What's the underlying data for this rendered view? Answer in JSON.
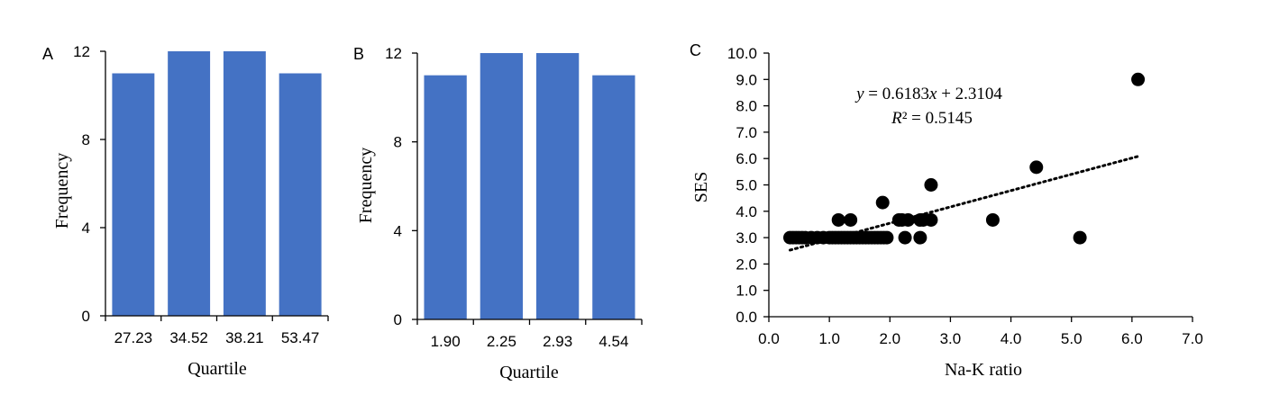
{
  "chart_data": [
    {
      "panel": "A",
      "type": "bar",
      "categories": [
        "27.23",
        "34.52",
        "38.21",
        "53.47"
      ],
      "values": [
        11,
        12,
        12,
        11
      ],
      "xlabel": "Quartile",
      "ylabel": "Frequency",
      "ylim": [
        0,
        12
      ],
      "yticks": [
        "0",
        "4",
        "8",
        "12"
      ],
      "color": "#4472C4"
    },
    {
      "panel": "B",
      "type": "bar",
      "categories": [
        "1.90",
        "2.25",
        "2.93",
        "4.54"
      ],
      "values": [
        11,
        12,
        12,
        11
      ],
      "xlabel": "Quartile",
      "ylabel": "Frequency",
      "ylim": [
        0,
        12
      ],
      "yticks": [
        "0",
        "4",
        "8",
        "12"
      ],
      "color": "#4472C4"
    },
    {
      "panel": "C",
      "type": "scatter",
      "xlabel": "Na-K ratio",
      "ylabel": "SES",
      "xlim": [
        0,
        7
      ],
      "ylim": [
        0,
        10
      ],
      "xticks": [
        "0.0",
        "1.0",
        "2.0",
        "3.0",
        "4.0",
        "5.0",
        "6.0",
        "7.0"
      ],
      "yticks": [
        "0.0",
        "1.0",
        "2.0",
        "3.0",
        "4.0",
        "5.0",
        "6.0",
        "7.0",
        "8.0",
        "9.0",
        "10.0"
      ],
      "x": [
        0.35,
        0.4,
        0.45,
        0.5,
        0.55,
        0.6,
        0.7,
        0.8,
        0.9,
        1.0,
        1.05,
        1.1,
        1.15,
        1.2,
        1.25,
        1.3,
        1.35,
        1.4,
        1.45,
        1.5,
        1.55,
        1.6,
        1.65,
        1.7,
        1.75,
        1.8,
        1.85,
        1.9,
        1.95,
        1.15,
        1.35,
        1.88,
        2.15,
        2.2,
        2.3,
        2.5,
        2.55,
        2.68,
        2.25,
        2.5,
        2.68,
        3.7,
        4.42,
        5.14,
        6.1
      ],
      "y": [
        3.0,
        3.0,
        3.0,
        3.0,
        3.0,
        3.0,
        3.0,
        3.0,
        3.0,
        3.0,
        3.0,
        3.0,
        3.0,
        3.0,
        3.0,
        3.0,
        3.0,
        3.0,
        3.0,
        3.0,
        3.0,
        3.0,
        3.0,
        3.0,
        3.0,
        3.0,
        3.0,
        3.0,
        3.0,
        3.67,
        3.67,
        4.33,
        3.67,
        3.67,
        3.67,
        3.67,
        3.67,
        3.67,
        3.0,
        3.0,
        5.0,
        3.67,
        5.67,
        3.0,
        9.0
      ],
      "trendline": {
        "slope": 0.6183,
        "intercept": 2.3104,
        "x_range": [
          0.35,
          6.1
        ]
      },
      "equation": {
        "y_var": "y",
        "eq_rest": " = 0.6183",
        "x_var": "x",
        "eq_tail": " + 2.3104",
        "r_var": "R",
        "r_rest": "² = 0.5145"
      }
    }
  ]
}
